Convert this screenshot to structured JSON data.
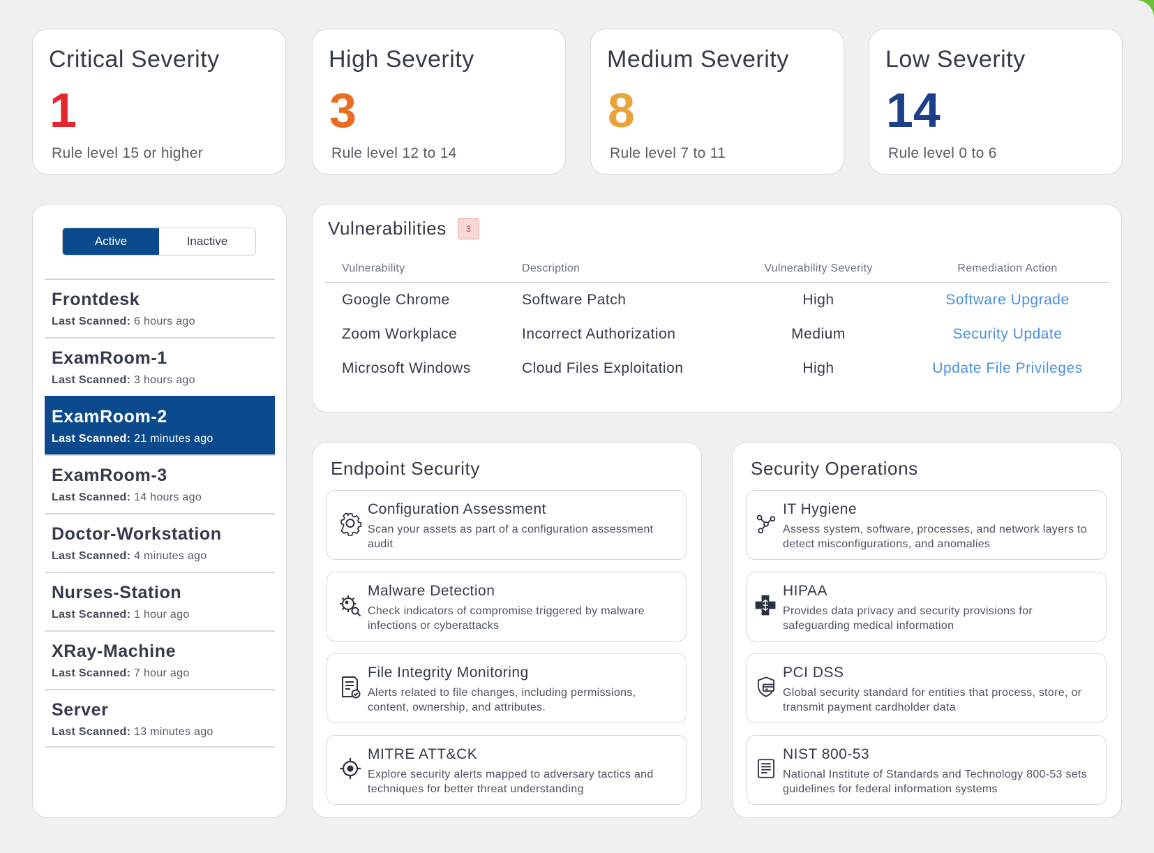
{
  "severity": [
    {
      "title": "Critical Severity",
      "count": "1",
      "subtitle": "Rule level 15 or higher",
      "color": "#e0282e"
    },
    {
      "title": "High Severity",
      "count": "3",
      "subtitle": "Rule level 12 to 14",
      "color": "#ea6d23"
    },
    {
      "title": "Medium Severity",
      "count": "8",
      "subtitle": "Rule level 7 to 11",
      "color": "#e8a33a"
    },
    {
      "title": "Low Severity",
      "count": "14",
      "subtitle": "Rule level 0 to 6",
      "color": "#1b3f8b"
    }
  ],
  "toggle": {
    "active": "Active",
    "inactive": "Inactive"
  },
  "devices": [
    {
      "name": "Frontdesk",
      "scan_label": "Last Scanned:",
      "scan_time": "6 hours ago"
    },
    {
      "name": "ExamRoom-1",
      "scan_label": "Last Scanned:",
      "scan_time": "3 hours ago"
    },
    {
      "name": "ExamRoom-2",
      "scan_label": "Last Scanned:",
      "scan_time": "21 minutes ago",
      "selected": true
    },
    {
      "name": "ExamRoom-3",
      "scan_label": "Last Scanned:",
      "scan_time": "14 hours ago"
    },
    {
      "name": "Doctor-Workstation",
      "scan_label": "Last Scanned:",
      "scan_time": "4 minutes ago"
    },
    {
      "name": "Nurses-Station",
      "scan_label": "Last Scanned:",
      "scan_time": "1 hour ago"
    },
    {
      "name": "XRay-Machine",
      "scan_label": "Last Scanned:",
      "scan_time": "7 hour ago"
    },
    {
      "name": "Server",
      "scan_label": "Last Scanned:",
      "scan_time": "13 minutes ago"
    }
  ],
  "vulnerabilities": {
    "title": "Vulnerabilities",
    "badge": "3",
    "columns": [
      "Vulnerability",
      "Description",
      "Vulnerability Severity",
      "Remediation Action"
    ],
    "rows": [
      [
        "Google Chrome",
        "Software Patch",
        "High",
        "Software Upgrade"
      ],
      [
        "Zoom Workplace",
        "Incorrect Authorization",
        "Medium",
        "Security Update"
      ],
      [
        "Microsoft Windows",
        "Cloud Files Exploitation",
        "High",
        "Update File Privileges"
      ]
    ]
  },
  "endpoint": {
    "title": "Endpoint Security",
    "items": [
      {
        "title": "Configuration Assessment",
        "desc": "Scan your assets as part of a configuration assessment audit",
        "icon": "gear-icon"
      },
      {
        "title": "Malware Detection",
        "desc": "Check indicators of compromise triggered by malware infections or cyberattacks",
        "icon": "virus-search-icon"
      },
      {
        "title": "File Integrity Monitoring",
        "desc": "Alerts related to file changes, including permissions, content, ownership, and attributes.",
        "icon": "file-check-icon"
      },
      {
        "title": "MITRE ATT&CK",
        "desc": "Explore security alerts mapped to adversary tactics and techniques for better threat understanding",
        "icon": "target-icon"
      }
    ]
  },
  "secops": {
    "title": "Security Operations",
    "items": [
      {
        "title": "IT Hygiene",
        "desc": "Assess system, software, processes, and network layers to detect misconfigurations, and anomalies",
        "icon": "network-nodes-icon"
      },
      {
        "title": "HIPAA",
        "desc": "Provides data privacy and security provisions for safeguarding medical information",
        "icon": "medical-cross-icon"
      },
      {
        "title": "PCI DSS",
        "desc": "Global security standard for entities that process, store, or transmit payment cardholder data",
        "icon": "shield-card-icon"
      },
      {
        "title": "NIST 800-53",
        "desc": "National Institute of Standards and Technology 800-53 sets guidelines for federal information systems",
        "icon": "document-icon"
      }
    ]
  }
}
